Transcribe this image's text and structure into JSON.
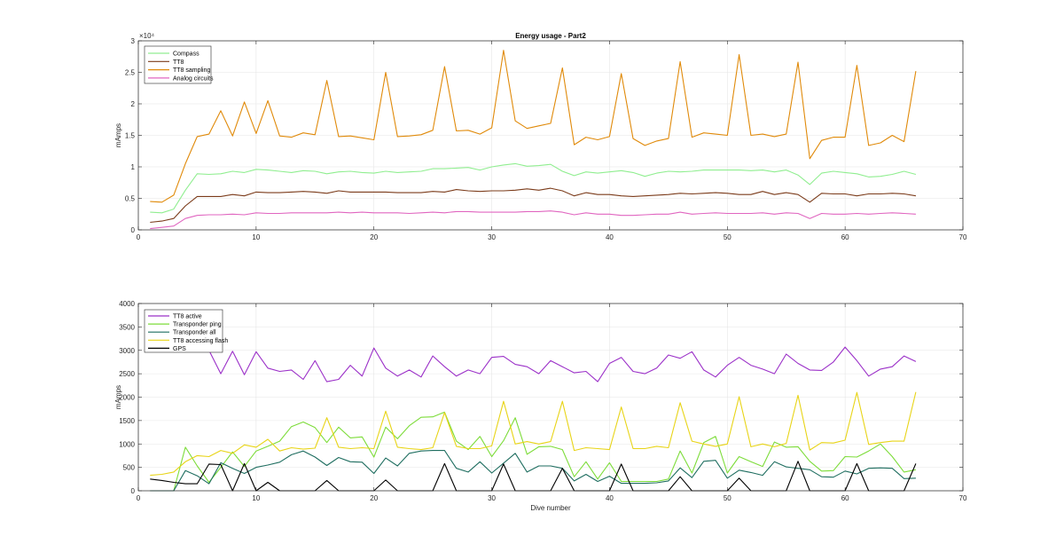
{
  "chart_data": [
    {
      "type": "line",
      "title": "Energy usage - Part2",
      "xlabel": "",
      "ylabel": "mAmps",
      "xlim": [
        0,
        70
      ],
      "ylim": [
        0,
        30000
      ],
      "xticks": [
        0,
        10,
        20,
        30,
        40,
        50,
        60,
        70
      ],
      "yticks": [
        0,
        0.5,
        1,
        1.5,
        2,
        2.5,
        3
      ],
      "y_exponent_label": "×10⁴",
      "grid": true,
      "legend_position": "top-left",
      "x": [
        1,
        2,
        3,
        4,
        5,
        6,
        7,
        8,
        9,
        10,
        11,
        12,
        13,
        14,
        15,
        16,
        17,
        18,
        19,
        20,
        21,
        22,
        23,
        24,
        25,
        26,
        27,
        28,
        29,
        30,
        31,
        32,
        33,
        34,
        35,
        36,
        37,
        38,
        39,
        40,
        41,
        42,
        43,
        44,
        45,
        46,
        47,
        48,
        49,
        50,
        51,
        52,
        53,
        54,
        55,
        56,
        57,
        58,
        59,
        60,
        61,
        62,
        63,
        64,
        65,
        66
      ],
      "series": [
        {
          "name": "Compass",
          "color": "#90ee90",
          "values": [
            2800,
            2700,
            3300,
            6300,
            8900,
            8800,
            8900,
            9300,
            9100,
            9600,
            9500,
            9300,
            9100,
            9400,
            9300,
            8900,
            9200,
            9300,
            9100,
            9000,
            9300,
            9100,
            9200,
            9300,
            9700,
            9700,
            9800,
            9900,
            9500,
            10000,
            10300,
            10500,
            10100,
            10200,
            10400,
            9300,
            8600,
            9200,
            9000,
            9200,
            9400,
            9100,
            8500,
            9000,
            9300,
            9200,
            9300,
            9500,
            9500,
            9500,
            9500,
            9400,
            9500,
            9200,
            9500,
            8700,
            7200,
            9000,
            9300,
            9100,
            8900,
            8400,
            8500,
            8800,
            9300,
            8800
          ]
        },
        {
          "name": "TT8",
          "color": "#7b3b1a",
          "values": [
            1200,
            1400,
            1800,
            3800,
            5300,
            5300,
            5300,
            5600,
            5400,
            6000,
            5900,
            5900,
            6000,
            6100,
            6000,
            5800,
            6200,
            6000,
            6000,
            6000,
            6000,
            5900,
            5900,
            5900,
            6100,
            6000,
            6400,
            6200,
            6100,
            6200,
            6200,
            6300,
            6500,
            6300,
            6600,
            6200,
            5400,
            5900,
            5600,
            5600,
            5400,
            5300,
            5400,
            5500,
            5600,
            5800,
            5700,
            5800,
            5900,
            5800,
            5600,
            5600,
            6100,
            5600,
            5900,
            5600,
            4400,
            5800,
            5700,
            5700,
            5400,
            5700,
            5700,
            5800,
            5700,
            5400
          ]
        },
        {
          "name": "TT8 sampling",
          "color": "#e08a0a",
          "values": [
            4500,
            4400,
            5500,
            10500,
            14800,
            15200,
            18900,
            14900,
            20300,
            15300,
            20500,
            14900,
            14700,
            15400,
            15100,
            23700,
            14800,
            14900,
            14600,
            14300,
            25000,
            14800,
            14900,
            15100,
            15800,
            25900,
            15700,
            15800,
            15200,
            16200,
            28500,
            17300,
            16100,
            16500,
            16900,
            25700,
            13500,
            14700,
            14300,
            14800,
            24800,
            14500,
            13400,
            14100,
            14500,
            26700,
            14700,
            15400,
            15200,
            15000,
            27800,
            15000,
            15200,
            14800,
            15200,
            26600,
            11300,
            14200,
            14700,
            14700,
            26100,
            13400,
            13800,
            15000,
            14000,
            25200
          ]
        },
        {
          "name": "Analog circuits",
          "color": "#e066c0",
          "values": [
            200,
            400,
            600,
            1800,
            2300,
            2400,
            2400,
            2500,
            2400,
            2700,
            2600,
            2600,
            2700,
            2700,
            2700,
            2700,
            2800,
            2700,
            2800,
            2700,
            2700,
            2700,
            2600,
            2700,
            2800,
            2700,
            2900,
            2900,
            2800,
            2800,
            2800,
            2800,
            2900,
            2900,
            3000,
            2800,
            2400,
            2700,
            2500,
            2500,
            2300,
            2300,
            2400,
            2500,
            2500,
            2800,
            2500,
            2600,
            2700,
            2600,
            2600,
            2600,
            2700,
            2500,
            2700,
            2600,
            1800,
            2600,
            2500,
            2500,
            2600,
            2500,
            2600,
            2700,
            2600,
            2500
          ]
        }
      ]
    },
    {
      "type": "line",
      "title": "",
      "xlabel": "Dive number",
      "ylabel": "mAmps",
      "xlim": [
        0,
        70
      ],
      "ylim": [
        0,
        4000
      ],
      "xticks": [
        0,
        10,
        20,
        30,
        40,
        50,
        60,
        70
      ],
      "yticks": [
        0,
        500,
        1000,
        1500,
        2000,
        2500,
        3000,
        3500,
        4000
      ],
      "grid": true,
      "legend_position": "top-left",
      "x": [
        1,
        2,
        3,
        4,
        5,
        6,
        7,
        8,
        9,
        10,
        11,
        12,
        13,
        14,
        15,
        16,
        17,
        18,
        19,
        20,
        21,
        22,
        23,
        24,
        25,
        26,
        27,
        28,
        29,
        30,
        31,
        32,
        33,
        34,
        35,
        36,
        37,
        38,
        39,
        40,
        41,
        42,
        43,
        44,
        45,
        46,
        47,
        48,
        49,
        50,
        51,
        52,
        53,
        54,
        55,
        56,
        57,
        58,
        59,
        60,
        61,
        62,
        63,
        64,
        65,
        66
      ],
      "series": [
        {
          "name": "TT8 active",
          "color": "#9b30c8",
          "values": [
            null,
            null,
            null,
            null,
            null,
            3000,
            2500,
            2980,
            2480,
            2970,
            2620,
            2550,
            2580,
            2380,
            2780,
            2330,
            2380,
            2680,
            2450,
            3050,
            2620,
            2450,
            2580,
            2430,
            2880,
            2650,
            2450,
            2580,
            2500,
            2850,
            2870,
            2700,
            2650,
            2500,
            2780,
            2650,
            2520,
            2550,
            2330,
            2720,
            2850,
            2550,
            2500,
            2620,
            2900,
            2830,
            2970,
            2580,
            2430,
            2680,
            2850,
            2680,
            2600,
            2500,
            2920,
            2720,
            2580,
            2570,
            2750,
            3070,
            2780,
            2450,
            2600,
            2650,
            2880,
            2760
          ]
        },
        {
          "name": "Transponder ping",
          "color": "#7ddc3a",
          "values": [
            0,
            0,
            0,
            930,
            530,
            180,
            500,
            830,
            520,
            850,
            950,
            1060,
            1370,
            1470,
            1350,
            1030,
            1360,
            1130,
            1150,
            720,
            1360,
            1110,
            1390,
            1570,
            1580,
            1680,
            1060,
            880,
            1160,
            730,
            1070,
            1560,
            780,
            940,
            950,
            880,
            300,
            620,
            250,
            600,
            200,
            200,
            200,
            200,
            250,
            850,
            380,
            1030,
            1160,
            380,
            730,
            620,
            520,
            1040,
            930,
            940,
            630,
            420,
            430,
            730,
            720,
            850,
            1000,
            730,
            400,
            450
          ]
        },
        {
          "name": "Transponder all",
          "color": "#1f6e60",
          "values": [
            0,
            0,
            0,
            430,
            320,
            150,
            600,
            480,
            370,
            500,
            550,
            610,
            770,
            850,
            720,
            540,
            710,
            620,
            610,
            370,
            700,
            530,
            800,
            850,
            860,
            860,
            480,
            400,
            620,
            380,
            590,
            800,
            400,
            530,
            530,
            480,
            210,
            350,
            200,
            310,
            160,
            160,
            160,
            170,
            210,
            490,
            280,
            630,
            650,
            270,
            440,
            390,
            330,
            620,
            510,
            480,
            450,
            300,
            290,
            420,
            360,
            480,
            490,
            480,
            260,
            270
          ]
        },
        {
          "name": "TT8 accessing flash",
          "color": "#e8d417",
          "values": [
            330,
            350,
            400,
            620,
            750,
            730,
            860,
            800,
            980,
            930,
            1100,
            850,
            920,
            890,
            910,
            1560,
            930,
            900,
            920,
            900,
            1700,
            930,
            900,
            880,
            920,
            1670,
            950,
            900,
            900,
            960,
            1910,
            1000,
            1050,
            1000,
            1050,
            1910,
            860,
            920,
            900,
            880,
            1790,
            900,
            900,
            950,
            920,
            1880,
            1060,
            1000,
            950,
            1000,
            2010,
            940,
            1000,
            940,
            1010,
            2040,
            870,
            1030,
            1020,
            1080,
            2100,
            990,
            1030,
            1060,
            1060,
            2110
          ]
        },
        {
          "name": "GPS",
          "color": "#000000",
          "values": [
            250,
            220,
            180,
            150,
            150,
            570,
            560,
            0,
            580,
            0,
            180,
            0,
            0,
            0,
            0,
            220,
            0,
            0,
            0,
            0,
            230,
            0,
            0,
            0,
            0,
            580,
            0,
            0,
            0,
            0,
            570,
            0,
            0,
            0,
            0,
            480,
            0,
            0,
            0,
            0,
            570,
            0,
            0,
            0,
            0,
            300,
            0,
            0,
            0,
            0,
            270,
            0,
            0,
            0,
            0,
            630,
            0,
            0,
            0,
            0,
            580,
            0,
            0,
            0,
            0,
            580
          ]
        }
      ]
    }
  ]
}
